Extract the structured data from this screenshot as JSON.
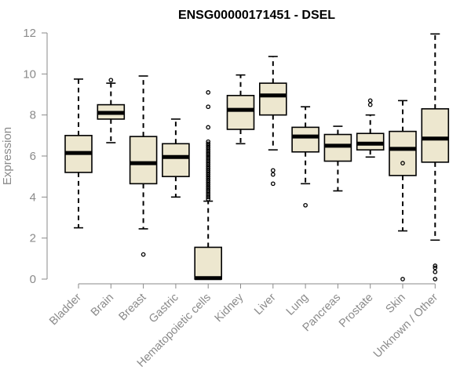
{
  "chart_data": {
    "type": "boxplot",
    "title": "ENSG00000171451 - DSEL",
    "xlabel": "",
    "ylabel": "Expression",
    "ylim": [
      0,
      12
    ],
    "yticks": [
      0,
      2,
      4,
      6,
      8,
      10,
      12
    ],
    "categories": [
      "Bladder",
      "Brain",
      "Breast",
      "Gastric",
      "Hematopoietic cells",
      "Kidney",
      "Liver",
      "Lung",
      "Pancreas",
      "Prostate",
      "Skin",
      "Unknown / Other"
    ],
    "series": [
      {
        "name": "Bladder",
        "whisker_low": 2.5,
        "q1": 5.2,
        "median": 6.15,
        "q3": 7.0,
        "whisker_high": 9.75,
        "outliers": []
      },
      {
        "name": "Brain",
        "whisker_low": 6.65,
        "q1": 7.8,
        "median": 8.1,
        "q3": 8.5,
        "whisker_high": 9.55,
        "outliers": [
          9.7
        ]
      },
      {
        "name": "Breast",
        "whisker_low": 2.45,
        "q1": 4.65,
        "median": 5.65,
        "q3": 6.95,
        "whisker_high": 9.9,
        "outliers": [
          1.2
        ]
      },
      {
        "name": "Gastric",
        "whisker_low": 4.0,
        "q1": 5.0,
        "median": 5.95,
        "q3": 6.6,
        "whisker_high": 7.8,
        "outliers": []
      },
      {
        "name": "Hematopoietic cells",
        "whisker_low": 0.0,
        "q1": 0.0,
        "median": 0.05,
        "q3": 1.55,
        "whisker_high": 3.8,
        "outliers": [
          3.9,
          4.0,
          4.1,
          4.2,
          4.3,
          4.4,
          4.5,
          4.6,
          4.7,
          4.8,
          4.9,
          5.0,
          5.1,
          5.2,
          5.3,
          5.4,
          5.5,
          5.6,
          5.7,
          5.8,
          5.9,
          6.0,
          6.1,
          6.2,
          6.3,
          6.4,
          6.5,
          6.6,
          6.7,
          7.4,
          8.4,
          9.1
        ]
      },
      {
        "name": "Kidney",
        "whisker_low": 6.6,
        "q1": 7.3,
        "median": 8.25,
        "q3": 8.95,
        "whisker_high": 9.95,
        "outliers": []
      },
      {
        "name": "Liver",
        "whisker_low": 6.3,
        "q1": 8.0,
        "median": 8.95,
        "q3": 9.55,
        "whisker_high": 10.85,
        "outliers": [
          4.65,
          5.1,
          5.3
        ]
      },
      {
        "name": "Lung",
        "whisker_low": 4.65,
        "q1": 6.2,
        "median": 6.95,
        "q3": 7.4,
        "whisker_high": 8.4,
        "outliers": [
          3.6
        ]
      },
      {
        "name": "Pancreas",
        "whisker_low": 4.3,
        "q1": 5.75,
        "median": 6.5,
        "q3": 7.05,
        "whisker_high": 7.45,
        "outliers": []
      },
      {
        "name": "Prostate",
        "whisker_low": 5.95,
        "q1": 6.3,
        "median": 6.6,
        "q3": 7.1,
        "whisker_high": 8.0,
        "outliers": [
          8.5,
          8.7
        ]
      },
      {
        "name": "Skin",
        "whisker_low": 2.35,
        "q1": 5.05,
        "median": 6.35,
        "q3": 7.2,
        "whisker_high": 8.7,
        "outliers": [
          0.0,
          5.65
        ]
      },
      {
        "name": "Unknown / Other",
        "whisker_low": 1.9,
        "q1": 5.7,
        "median": 6.85,
        "q3": 8.3,
        "whisker_high": 11.95,
        "outliers": [
          0.0,
          0.35,
          0.55,
          0.65
        ]
      }
    ]
  }
}
